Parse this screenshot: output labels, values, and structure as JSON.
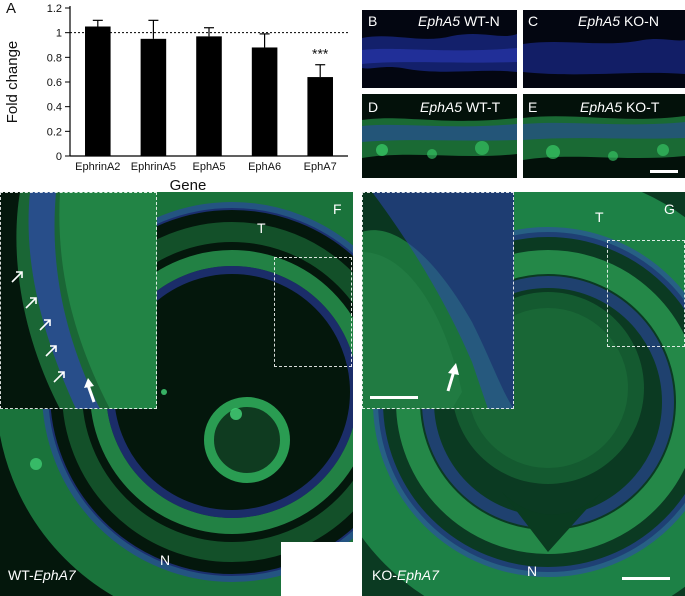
{
  "panel_a": {
    "letter": "A",
    "chart_data": {
      "type": "bar",
      "categories": [
        "EphrinA2",
        "EphrinA5",
        "EphA5",
        "EphA6",
        "EphA7"
      ],
      "values": [
        1.05,
        0.95,
        0.97,
        0.88,
        0.64
      ],
      "errors": [
        0.05,
        0.15,
        0.07,
        0.11,
        0.1
      ],
      "xlabel": "Gene",
      "ylabel": "Fold change",
      "ylim": [
        0,
        1.2
      ],
      "yticks": [
        "0",
        "0.2",
        "0.4",
        "0.6",
        "0.8",
        "1",
        "1.2"
      ],
      "reference_line": 1,
      "significance": {
        "category": "EphA7",
        "label": "***"
      },
      "bar_color": "#000000"
    }
  },
  "panel_b": {
    "letter": "B",
    "gene": "EphA5",
    "suffix": "WT-N"
  },
  "panel_c": {
    "letter": "C",
    "gene": "EphA5",
    "suffix": "KO-N"
  },
  "panel_d": {
    "letter": "D",
    "gene": "EphA5",
    "suffix": "WT-T"
  },
  "panel_e": {
    "letter": "E",
    "gene": "EphA5",
    "suffix": "KO-T"
  },
  "panel_f": {
    "letter": "F",
    "t_label": "T",
    "n_label": "N",
    "prefix": "WT-",
    "gene": "EphA7"
  },
  "panel_g": {
    "letter": "G",
    "t_label": "T",
    "n_label": "N",
    "prefix": "KO-",
    "gene": "EphA7"
  },
  "colors": {
    "tissue_green": "#1f9c4a",
    "nuclei_blue": "#3a45c8",
    "background": "#04170c"
  }
}
